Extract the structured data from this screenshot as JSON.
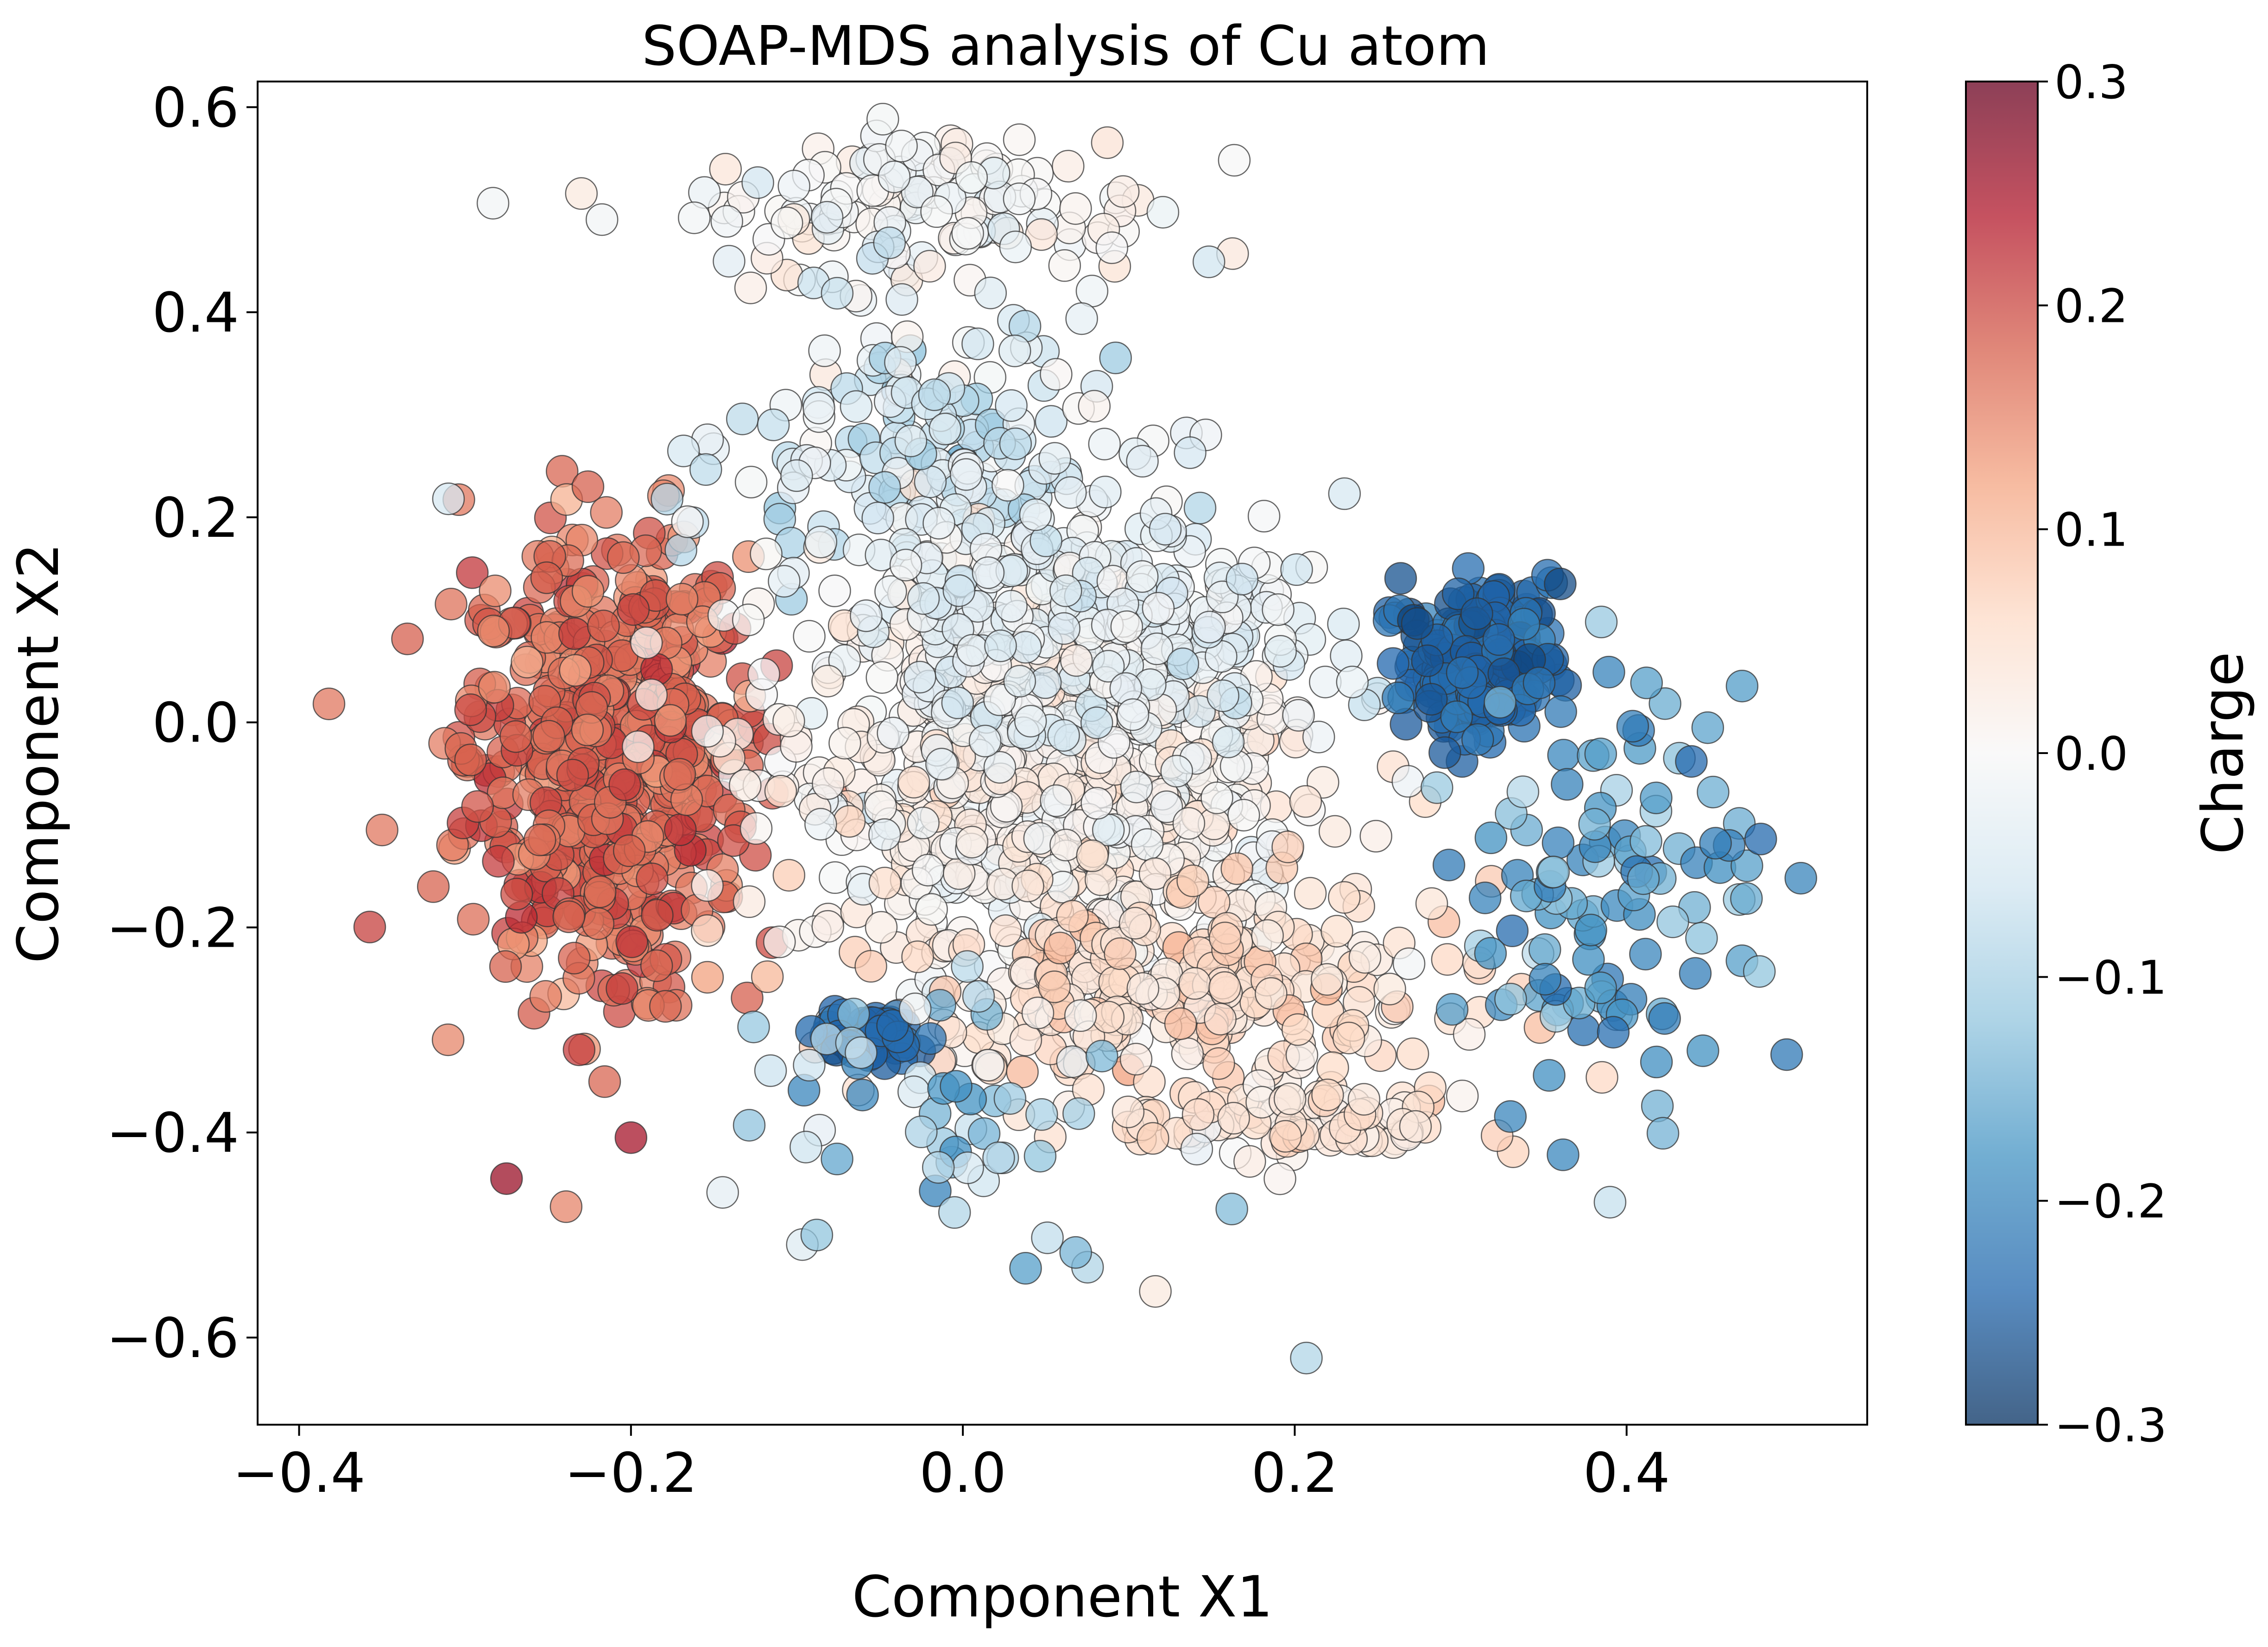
{
  "chart_data": {
    "type": "scatter",
    "title": "SOAP-MDS analysis of Cu atom",
    "xlabel": "Component X1",
    "ylabel": "Component X2",
    "xlim": [
      -0.425,
      0.545
    ],
    "ylim": [
      -0.685,
      0.625
    ],
    "x_ticks": [
      -0.4,
      -0.2,
      0.0,
      0.2,
      0.4
    ],
    "x_tick_labels": [
      "−0.4",
      "−0.2",
      "0.0",
      "0.2",
      "0.4"
    ],
    "y_ticks": [
      -0.6,
      -0.4,
      -0.2,
      0.0,
      0.2,
      0.4,
      0.6
    ],
    "y_tick_labels": [
      "−0.6",
      "−0.4",
      "−0.2",
      "0.0",
      "0.2",
      "0.4",
      "0.6"
    ],
    "grid": false,
    "colorbar": {
      "label": "Charge",
      "colormap": "RdBu_r",
      "range": [
        -0.3,
        0.3
      ],
      "ticks": [
        -0.3,
        -0.2,
        -0.1,
        0.0,
        0.1,
        0.2,
        0.3
      ],
      "tick_labels": [
        "−0.3",
        "−0.2",
        "−0.1",
        "0.0",
        "0.1",
        "0.2",
        "0.3"
      ],
      "stops": [
        "#053061",
        "#2166ac",
        "#4393c3",
        "#92c5de",
        "#d1e5f0",
        "#f7f7f7",
        "#fddbc7",
        "#f4a582",
        "#d6604d",
        "#b2182b",
        "#67001f"
      ]
    },
    "marker_alpha": 0.75,
    "marker_edge_color": "#333333",
    "clusters": [
      {
        "region": "left",
        "cx": -0.215,
        "cy": -0.03,
        "sx": 0.042,
        "sy": 0.11,
        "count": 620,
        "charge_mean": 0.17,
        "charge_sd": 0.025
      },
      {
        "region": "upper-arc",
        "cx": -0.02,
        "cy": 0.5,
        "sx": 0.07,
        "sy": 0.04,
        "count": 140,
        "charge_mean": 0.0,
        "charge_sd": 0.02
      },
      {
        "region": "upper-middle",
        "cx": -0.02,
        "cy": 0.26,
        "sx": 0.06,
        "sy": 0.07,
        "count": 160,
        "charge_mean": -0.06,
        "charge_sd": 0.04
      },
      {
        "region": "center",
        "cx": 0.05,
        "cy": -0.05,
        "sx": 0.08,
        "sy": 0.1,
        "count": 720,
        "charge_mean": 0.01,
        "charge_sd": 0.025
      },
      {
        "region": "center-upper",
        "cx": 0.08,
        "cy": 0.1,
        "sx": 0.07,
        "sy": 0.06,
        "count": 260,
        "charge_mean": -0.03,
        "charge_sd": 0.02
      },
      {
        "region": "lower-streak",
        "cx": 0.13,
        "cy": -0.26,
        "sx": 0.08,
        "sy": 0.05,
        "count": 260,
        "charge_mean": 0.05,
        "charge_sd": 0.025
      },
      {
        "region": "bottom-streak",
        "cx": 0.2,
        "cy": -0.39,
        "sx": 0.055,
        "sy": 0.02,
        "count": 90,
        "charge_mean": 0.04,
        "charge_sd": 0.025
      },
      {
        "region": "right-dense",
        "cx": 0.31,
        "cy": 0.06,
        "sx": 0.022,
        "sy": 0.035,
        "count": 220,
        "charge_mean": -0.24,
        "charge_sd": 0.02
      },
      {
        "region": "right-tail",
        "cx": 0.39,
        "cy": -0.15,
        "sx": 0.045,
        "sy": 0.1,
        "count": 110,
        "charge_mean": -0.17,
        "charge_sd": 0.04
      },
      {
        "region": "lower-left-blue",
        "cx": -0.055,
        "cy": -0.305,
        "sx": 0.015,
        "sy": 0.012,
        "count": 60,
        "charge_mean": -0.24,
        "charge_sd": 0.015
      },
      {
        "region": "lower-scatter",
        "cx": -0.02,
        "cy": -0.38,
        "sx": 0.06,
        "sy": 0.07,
        "count": 50,
        "charge_mean": -0.12,
        "charge_sd": 0.05
      }
    ],
    "outliers": [
      {
        "x": -0.382,
        "y": 0.018,
        "c": 0.16
      },
      {
        "x": -0.35,
        "y": -0.105,
        "c": 0.16
      },
      {
        "x": -0.31,
        "y": 0.218,
        "c": -0.05
      },
      {
        "x": -0.275,
        "y": -0.445,
        "c": 0.26
      },
      {
        "x": -0.2,
        "y": -0.405,
        "c": 0.25
      },
      {
        "x": 0.207,
        "y": -0.62,
        "c": -0.09
      },
      {
        "x": 0.505,
        "y": -0.152,
        "c": -0.2
      },
      {
        "x": 0.48,
        "y": -0.243,
        "c": -0.12
      },
      {
        "x": 0.39,
        "y": -0.468,
        "c": -0.07
      },
      {
        "x": 0.116,
        "y": -0.555,
        "c": 0.03
      },
      {
        "x": 0.36,
        "y": 0.135,
        "c": -0.27
      },
      {
        "x": 0.068,
        "y": -0.517,
        "c": -0.14
      },
      {
        "x": -0.088,
        "y": -0.5,
        "c": -0.12
      },
      {
        "x": -0.005,
        "y": -0.478,
        "c": -0.09
      },
      {
        "x": 0.23,
        "y": 0.223,
        "c": -0.05
      }
    ]
  }
}
